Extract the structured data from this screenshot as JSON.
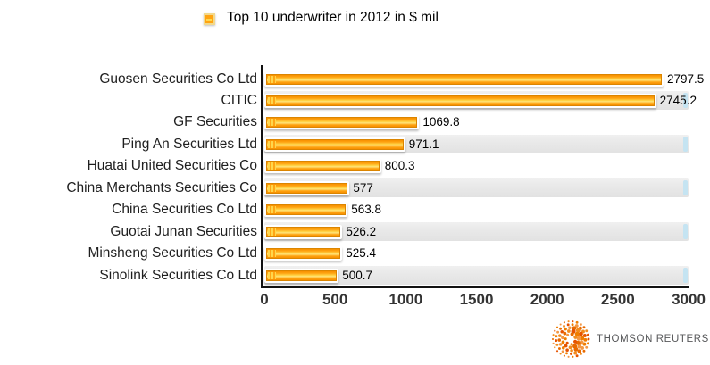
{
  "chart_data": {
    "type": "bar",
    "orientation": "horizontal",
    "title": "Top 10 underwriter in 2012 in $ mil",
    "legend": {
      "position": "top",
      "entries": [
        "Top 10 underwriter in 2012 in $ mil"
      ]
    },
    "categories": [
      "Guosen Securities Co Ltd",
      "CITIC",
      "GF Securities",
      "Ping An Securities Ltd",
      "Huatai United Securities Co",
      "China Merchants Securities Co",
      "China Securities Co Ltd",
      "Guotai Junan Securities",
      "Minsheng Securities Co Ltd",
      "Sinolink Securities Co Ltd"
    ],
    "values": [
      2797.5,
      2745.2,
      1069.8,
      971.1,
      800.3,
      577,
      563.8,
      526.2,
      525.4,
      500.7
    ],
    "value_labels": [
      "2797.5",
      "2745.2",
      "1069.8",
      "971.1",
      "800.3",
      "577",
      "563.8",
      "526.2",
      "525.4",
      "500.7"
    ],
    "xlabel": "",
    "ylabel": "",
    "xlim": [
      0,
      3000
    ],
    "x_ticks": [
      "0",
      "500",
      "1000",
      "1500",
      "2000",
      "2500",
      "3000"
    ],
    "x_tick_values": [
      0,
      500,
      1000,
      1500,
      2000,
      2500,
      3000
    ],
    "grid": false,
    "zebra_rows": [
      1,
      3,
      5,
      7,
      9
    ],
    "colors": {
      "bar_dark": "#F78F00",
      "bar_mid": "#FFA412",
      "bar_highlight": "#FFD84D",
      "bar_highlight2": "#FFE37A",
      "bar_border": "#DB8500",
      "legend_ring": "#F2D98C",
      "stripe": "#E9E9E9",
      "stripe_cap": "#C5E4F2",
      "axis": "#111111"
    }
  },
  "branding": {
    "logo_text": "THOMSON REUTERS",
    "logo_orange": "#EF7D00",
    "text_color": "#58595B"
  }
}
